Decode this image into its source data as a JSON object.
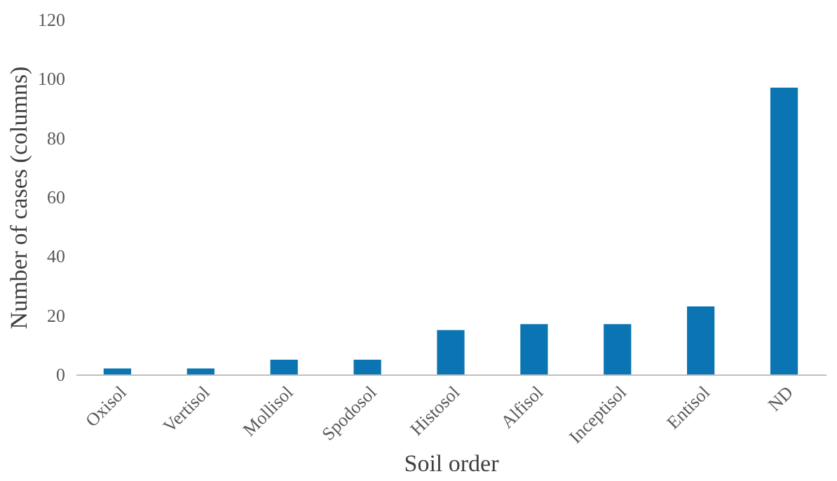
{
  "chart_data": {
    "type": "bar",
    "xlabel": "Soil order",
    "ylabel": "Number of cases (columns)",
    "categories": [
      "Oxisol",
      "Vertisol",
      "Mollisol",
      "Spodosol",
      "Histosol",
      "Alfisol",
      "Inceptisol",
      "Entisol",
      "ND"
    ],
    "values": [
      2,
      2,
      5,
      5,
      15,
      17,
      17,
      23,
      97
    ],
    "color": "#0a75b2",
    "ylim": [
      0,
      120
    ],
    "yticks": [
      0,
      20,
      40,
      60,
      80,
      100,
      120
    ],
    "grid": false
  }
}
